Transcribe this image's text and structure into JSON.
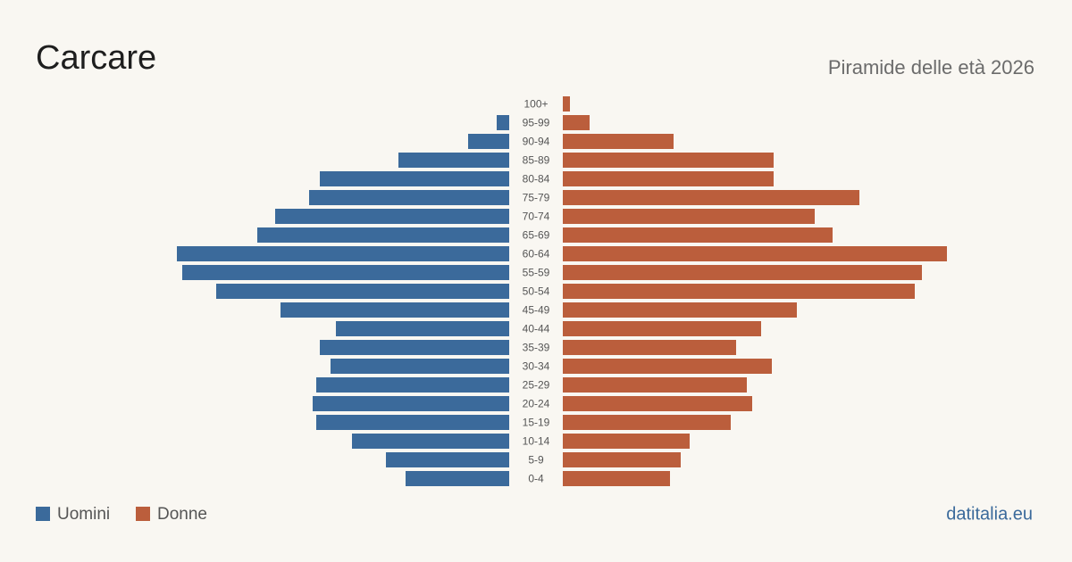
{
  "chart_data": {
    "type": "pyramid",
    "title": "Carcare",
    "subtitle": "Piramide delle età 2026",
    "source": "datitalia.eu",
    "categories": [
      "100+",
      "95-99",
      "90-94",
      "85-89",
      "80-84",
      "75-79",
      "70-74",
      "65-69",
      "60-64",
      "55-59",
      "50-54",
      "45-49",
      "40-44",
      "35-39",
      "30-34",
      "25-29",
      "20-24",
      "15-19",
      "10-14",
      "5-9",
      "0-4"
    ],
    "series": [
      {
        "name": "Uomini",
        "color": "#3b6a9b",
        "values": [
          0,
          7,
          23,
          62,
          106,
          112,
          131,
          141,
          186,
          183,
          164,
          128,
          97,
          106,
          100,
          108,
          110,
          108,
          88,
          69,
          58
        ]
      },
      {
        "name": "Donne",
        "color": "#bb5e3c",
        "values": [
          4,
          15,
          62,
          118,
          118,
          166,
          141,
          151,
          215,
          201,
          197,
          131,
          111,
          97,
          117,
          103,
          106,
          94,
          71,
          66,
          60
        ]
      }
    ]
  }
}
